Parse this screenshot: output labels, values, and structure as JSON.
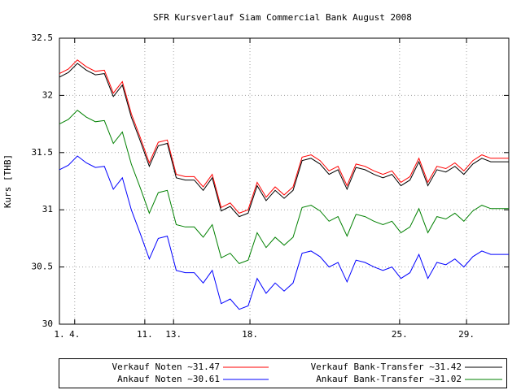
{
  "chart_data": {
    "type": "line",
    "title": "SFR Kursverlauf Siam Commercial Bank August 2008",
    "y_label": "Kurs [THB]",
    "x": [
      0,
      2,
      4,
      6,
      8,
      10,
      12,
      14,
      16,
      18,
      20,
      22,
      24,
      26,
      28,
      30,
      32,
      34,
      36,
      38,
      40,
      42,
      44,
      46,
      48,
      50,
      52,
      54,
      56,
      58,
      60,
      62,
      64,
      66,
      68,
      70,
      72,
      74,
      76,
      78,
      80,
      82,
      84,
      86,
      88,
      90,
      92,
      94,
      96,
      98,
      100
    ],
    "xlim": [
      0,
      100
    ],
    "xticks": [
      {
        "value": 0,
        "label": "1."
      },
      {
        "value": 3.4,
        "label": "4."
      },
      {
        "value": 19,
        "label": "11."
      },
      {
        "value": 25.4,
        "label": "13."
      },
      {
        "value": 42.4,
        "label": "18."
      },
      {
        "value": 75.7,
        "label": "25."
      },
      {
        "value": 90.6,
        "label": "29."
      }
    ],
    "ylim": [
      30,
      32.5
    ],
    "yticks": [
      30,
      30.5,
      31,
      31.5,
      32,
      32.5
    ],
    "grid": true,
    "series": [
      {
        "name": "Verkauf Noten ~31.47",
        "color": "#ff0000",
        "values": [
          32.19,
          32.23,
          32.31,
          32.25,
          32.21,
          32.22,
          32.02,
          32.12,
          31.84,
          31.63,
          31.41,
          31.59,
          31.61,
          31.31,
          31.29,
          31.29,
          31.2,
          31.31,
          31.02,
          31.06,
          30.97,
          31.0,
          31.24,
          31.11,
          31.2,
          31.13,
          31.2,
          31.46,
          31.48,
          31.43,
          31.34,
          31.38,
          31.21,
          31.4,
          31.38,
          31.34,
          31.31,
          31.34,
          31.24,
          31.29,
          31.45,
          31.24,
          31.38,
          31.36,
          31.41,
          31.34,
          31.43,
          31.48,
          31.45,
          31.45,
          31.45
        ]
      },
      {
        "name": "Verkauf Bank-Transfer ~31.42",
        "color": "#000000",
        "values": [
          32.16,
          32.2,
          32.28,
          32.22,
          32.18,
          32.19,
          31.99,
          32.09,
          31.81,
          31.6,
          31.38,
          31.56,
          31.58,
          31.28,
          31.26,
          31.26,
          31.17,
          31.28,
          30.99,
          31.03,
          30.94,
          30.97,
          31.21,
          31.08,
          31.17,
          31.1,
          31.17,
          31.43,
          31.45,
          31.4,
          31.31,
          31.35,
          31.18,
          31.37,
          31.35,
          31.31,
          31.28,
          31.31,
          31.21,
          31.26,
          31.42,
          31.21,
          31.35,
          31.33,
          31.38,
          31.31,
          31.4,
          31.45,
          31.42,
          31.42,
          31.42
        ]
      },
      {
        "name": "Ankauf Noten ~30.61",
        "color": "#0000ff",
        "values": [
          31.35,
          31.39,
          31.47,
          31.41,
          31.37,
          31.38,
          31.18,
          31.28,
          31.0,
          30.79,
          30.57,
          30.75,
          30.77,
          30.47,
          30.45,
          30.45,
          30.36,
          30.47,
          30.18,
          30.22,
          30.13,
          30.16,
          30.4,
          30.27,
          30.36,
          30.29,
          30.36,
          30.62,
          30.64,
          30.59,
          30.5,
          30.54,
          30.37,
          30.56,
          30.54,
          30.5,
          30.47,
          30.5,
          30.4,
          30.45,
          30.61,
          30.4,
          30.54,
          30.52,
          30.57,
          30.5,
          30.59,
          30.64,
          30.61,
          30.61,
          30.61
        ]
      },
      {
        "name": "Ankauf Bank-Transfer ~31.02",
        "color": "#008000",
        "values": [
          31.75,
          31.79,
          31.87,
          31.81,
          31.77,
          31.78,
          31.58,
          31.68,
          31.4,
          31.19,
          30.97,
          31.15,
          31.17,
          30.87,
          30.85,
          30.85,
          30.76,
          30.87,
          30.58,
          30.62,
          30.53,
          30.56,
          30.8,
          30.67,
          30.76,
          30.69,
          30.76,
          31.02,
          31.04,
          30.99,
          30.9,
          30.94,
          30.77,
          30.96,
          30.94,
          30.9,
          30.87,
          30.9,
          30.8,
          30.85,
          31.01,
          30.8,
          30.94,
          30.92,
          30.97,
          30.9,
          30.99,
          31.04,
          31.01,
          31.01,
          31.01
        ]
      }
    ]
  }
}
